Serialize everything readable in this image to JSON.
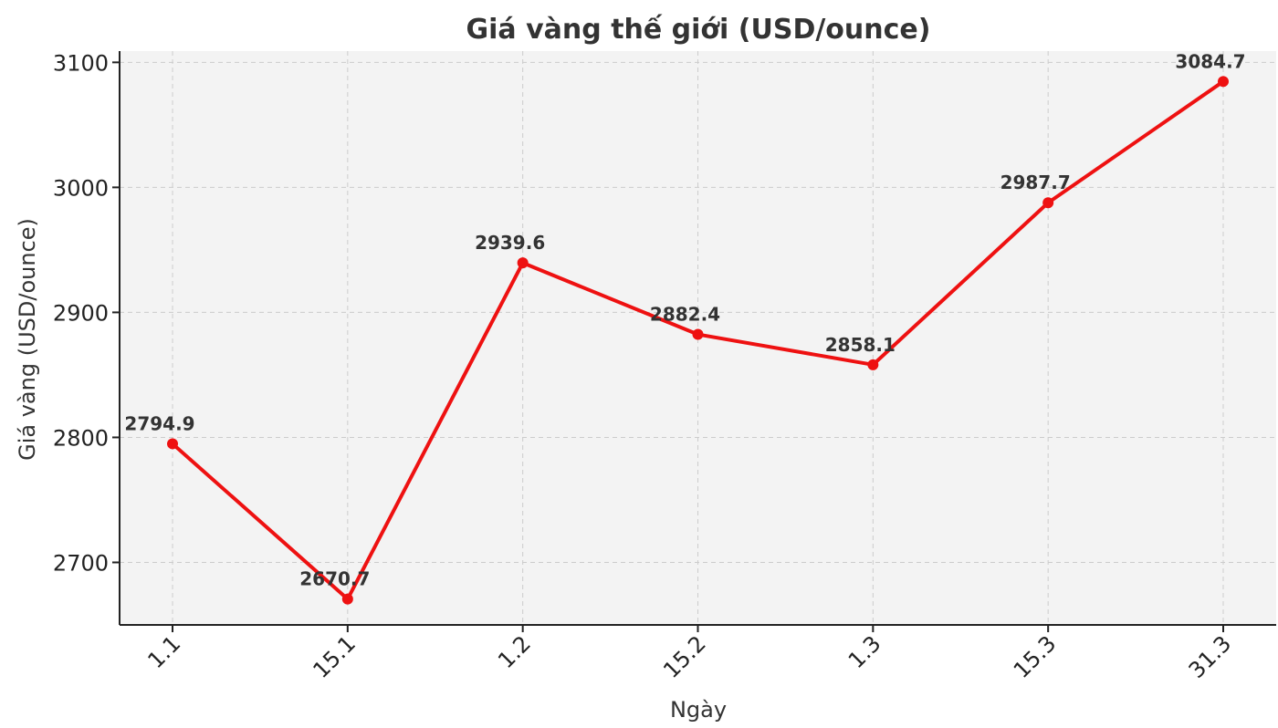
{
  "chart_data": {
    "type": "line",
    "title": "Giá vàng thế giới (USD/ounce)",
    "xlabel": "Ngày",
    "ylabel": "Giá vàng (USD/ounce)",
    "categories": [
      "1.1",
      "15.1",
      "1.2",
      "15.2",
      "1.3",
      "15.3",
      "31.3"
    ],
    "series": [
      {
        "values": [
          2794.9,
          2670.7,
          2939.6,
          2882.4,
          2858.1,
          2987.7,
          3084.7
        ]
      }
    ],
    "data_labels": [
      "2794.9",
      "2670.7",
      "2939.6",
      "2882.4",
      "2858.1",
      "2987.7",
      "3084.7"
    ],
    "yticks": [
      2700,
      2800,
      2900,
      3000,
      3100
    ],
    "ylim": [
      2650,
      3105
    ],
    "grid": true,
    "colors": {
      "line": "#ee1111",
      "plot_background": "#f3f3f3"
    }
  }
}
